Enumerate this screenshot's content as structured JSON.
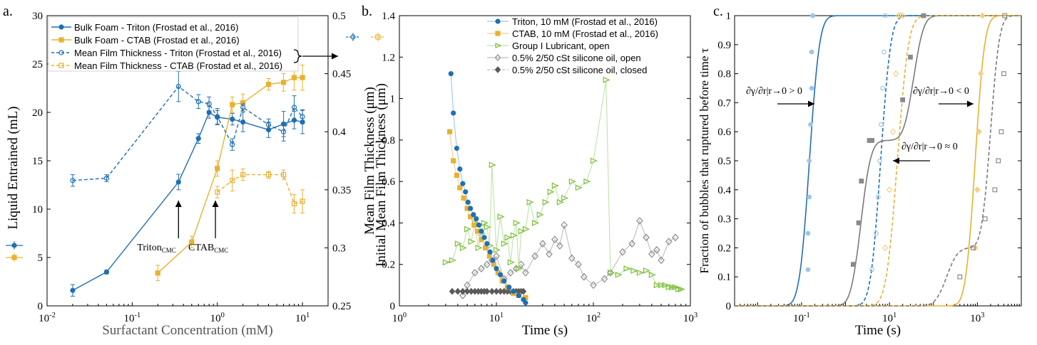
{
  "figure": {
    "panels": [
      "a.",
      "b.",
      "c."
    ]
  },
  "chart_data": [
    {
      "id": "a",
      "type": "line",
      "xlabel": "Surfactant Concentration (mM)",
      "ylabel": "Liquid Entrained (mL)",
      "ylabel_right": "Initial Mean Film Thickness (μm)",
      "xscale": "log",
      "xlim": [
        0.01,
        20
      ],
      "ylim": [
        0,
        30
      ],
      "ylim_right": [
        0.25,
        0.5
      ],
      "xticks": [
        0.01,
        0.1,
        1,
        10
      ],
      "xtick_labels": [
        "10^-2",
        "10^-1",
        "10^0",
        "10^1"
      ],
      "yticks": [
        0,
        5,
        10,
        15,
        20,
        25,
        30
      ],
      "yticks_right": [
        0.25,
        0.3,
        0.35,
        0.4,
        0.45,
        0.5
      ],
      "legend_position": "top-left",
      "colors": {
        "triton": "#1f6fb4",
        "ctab": "#e8b130"
      },
      "series": [
        {
          "name": "Bulk Foam - Triton (Frostad et al., 2016)",
          "axis": "left",
          "style": "solid",
          "marker": "filled-circle",
          "color": "#1f6fb4",
          "x": [
            0.02,
            0.05,
            0.35,
            0.6,
            0.8,
            1.0,
            1.5,
            2.0,
            4.0,
            6.0,
            8.0,
            10.0
          ],
          "y": [
            1.6,
            3.5,
            12.8,
            17.3,
            20.0,
            19.5,
            19.3,
            19.0,
            18.2,
            18.8,
            19.2,
            19.0
          ],
          "err": [
            0.6,
            0.2,
            0.8,
            0.5,
            0.6,
            0.7,
            0.6,
            1.0,
            0.8,
            1.3,
            0.9,
            1.2
          ]
        },
        {
          "name": "Bulk Foam - CTAB (Frostad et al., 2016)",
          "axis": "left",
          "style": "solid",
          "marker": "filled-square",
          "color": "#e8b130",
          "x": [
            0.2,
            0.5,
            1.0,
            1.5,
            2.0,
            4.0,
            6.0,
            8.0,
            10.0
          ],
          "y": [
            3.4,
            6.6,
            14.2,
            20.8,
            21.0,
            22.9,
            23.1,
            23.6,
            23.6
          ],
          "err": [
            0.8,
            0.6,
            0.8,
            0.8,
            0.9,
            0.6,
            0.9,
            1.3,
            1.3
          ]
        },
        {
          "name": "Mean Film Thickness - Triton (Frostad et al., 2016)",
          "axis": "right",
          "style": "dashed",
          "marker": "open-circle",
          "color": "#1f6fb4",
          "x": [
            0.02,
            0.05,
            0.35,
            0.6,
            0.8,
            1.0,
            1.5,
            2.0,
            4.0,
            6.0,
            8.0,
            10.0
          ],
          "y": [
            0.358,
            0.36,
            0.439,
            0.426,
            0.424,
            0.413,
            0.389,
            0.421,
            0.406,
            0.4,
            0.421,
            0.413
          ],
          "err": [
            0.005,
            0.003,
            0.013,
            0.006,
            0.006,
            0.007,
            0.005,
            0.003,
            0.005,
            0.008,
            0.01,
            0.006
          ]
        },
        {
          "name": "Mean Film Thickness - CTAB (Frostad et al., 2016)",
          "axis": "right",
          "style": "dashed",
          "marker": "open-square",
          "color": "#e8b130",
          "x": [
            1.0,
            1.5,
            2.0,
            4.0,
            6.0,
            8.0,
            10.0
          ],
          "y": [
            0.348,
            0.358,
            0.363,
            0.363,
            0.363,
            0.338,
            0.34
          ],
          "err": [
            0.005,
            0.009,
            0.005,
            0.003,
            0.004,
            0.008,
            0.01
          ]
        }
      ],
      "annotations": [
        {
          "text": "Triton",
          "sub": "CMC",
          "x": 0.35
        },
        {
          "text": "CTAB",
          "sub": "CMC",
          "x": 0.95
        }
      ]
    },
    {
      "id": "b",
      "type": "line",
      "xlabel": "Time (s)",
      "ylabel": "Mean Film Thickness (μm)",
      "xscale": "log",
      "xlim": [
        1,
        1000
      ],
      "ylim": [
        0,
        1.4
      ],
      "xticks": [
        1,
        10,
        100,
        1000
      ],
      "xtick_labels": [
        "10^0",
        "10^1",
        "10^2",
        "10^3"
      ],
      "yticks": [
        0,
        0.2,
        0.4,
        0.6,
        0.8,
        1,
        1.2,
        1.4
      ],
      "legend_position": "top-right",
      "series": [
        {
          "name": "Triton, 10 mM (Frostad et al., 2016)",
          "marker": "filled-circle",
          "color": "#1f6fb4",
          "x": [
            3.4,
            3.6,
            3.9,
            4.2,
            4.5,
            4.8,
            5.1,
            5.4,
            5.8,
            6.2,
            6.6,
            7.0,
            7.5,
            8.0,
            8.6,
            9.2,
            10,
            11,
            12,
            13.5,
            15,
            17,
            19,
            20
          ],
          "y": [
            1.12,
            0.93,
            0.76,
            0.66,
            0.59,
            0.55,
            0.5,
            0.47,
            0.44,
            0.42,
            0.39,
            0.36,
            0.33,
            0.3,
            0.26,
            0.22,
            0.18,
            0.15,
            0.12,
            0.09,
            0.07,
            0.05,
            0.03,
            0.015
          ]
        },
        {
          "name": "CTAB, 10 mM (Frostad et al., 2016)",
          "marker": "filled-square",
          "color": "#e8b130",
          "x": [
            3.3,
            3.6,
            3.9,
            4.2,
            4.6,
            5.0,
            5.4,
            5.9,
            6.4,
            7.0,
            7.7,
            8.5,
            9.4,
            10.4,
            11.5,
            13,
            15,
            17,
            20
          ],
          "y": [
            0.84,
            0.7,
            0.63,
            0.57,
            0.52,
            0.47,
            0.43,
            0.39,
            0.36,
            0.32,
            0.28,
            0.24,
            0.2,
            0.16,
            0.12,
            0.09,
            0.06,
            0.05,
            0.04
          ]
        },
        {
          "name": "Group I Lubricant, open",
          "marker": "open-triangle",
          "color": "#7dbf3a",
          "x": [
            3.0,
            3.5,
            4.0,
            4.5,
            5.0,
            5.5,
            6.0,
            6.5,
            7.0,
            7.5,
            8.0,
            8.5,
            9.0,
            10,
            11,
            12,
            13,
            14,
            15,
            16,
            17,
            18,
            20,
            22,
            25,
            28,
            32,
            36,
            40,
            45,
            50,
            60,
            70,
            85,
            100,
            135,
            150,
            180,
            220,
            260,
            300,
            350,
            400,
            450,
            500,
            550,
            600,
            650,
            700,
            750,
            800
          ],
          "y": [
            0.21,
            0.22,
            0.3,
            0.28,
            0.37,
            0.31,
            0.4,
            0.28,
            0.35,
            0.4,
            0.38,
            0.29,
            0.68,
            0.27,
            0.43,
            0.3,
            0.33,
            0.21,
            0.34,
            0.4,
            0.18,
            0.36,
            0.37,
            0.5,
            0.4,
            0.44,
            0.5,
            0.55,
            0.58,
            0.5,
            0.52,
            0.6,
            0.57,
            0.6,
            0.7,
            1.09,
            0.16,
            0.15,
            0.18,
            0.17,
            0.16,
            0.17,
            0.15,
            0.1,
            0.1,
            0.1,
            0.09,
            0.09,
            0.09,
            0.08,
            0.08
          ]
        },
        {
          "name": "0.5% 2/50 cSt silicone oil, open",
          "marker": "open-diamond",
          "color": "#8a8a8a",
          "x": [
            4.5,
            5.0,
            6.0,
            7.0,
            8.0,
            9.0,
            10,
            12,
            14,
            16,
            18,
            20,
            25,
            30,
            35,
            40,
            45,
            50,
            60,
            70,
            80,
            100,
            130,
            150,
            200,
            250,
            300,
            350,
            400,
            450,
            500,
            600,
            700
          ],
          "y": [
            0.05,
            0.1,
            0.16,
            0.18,
            0.2,
            0.22,
            0.24,
            0.13,
            0.16,
            0.18,
            0.2,
            0.16,
            0.24,
            0.3,
            0.25,
            0.32,
            0.29,
            0.39,
            0.23,
            0.2,
            0.14,
            0.1,
            0.13,
            0.16,
            0.26,
            0.3,
            0.41,
            0.33,
            0.25,
            0.27,
            0.22,
            0.31,
            0.33
          ]
        },
        {
          "name": "0.5% 2/50 cSt silicone oil, closed",
          "marker": "filled-diamond",
          "color": "#5a5a5a",
          "x": [
            3.5,
            4.0,
            4.5,
            5.0,
            5.5,
            6.0,
            6.5,
            7.0,
            7.5,
            8.0,
            9.0,
            10,
            11,
            12,
            13,
            14,
            15,
            16,
            17,
            18,
            19
          ],
          "y": [
            0.07,
            0.07,
            0.07,
            0.07,
            0.07,
            0.07,
            0.07,
            0.07,
            0.07,
            0.07,
            0.07,
            0.07,
            0.07,
            0.07,
            0.07,
            0.07,
            0.07,
            0.07,
            0.07,
            0.07,
            0.07
          ]
        }
      ]
    },
    {
      "id": "c",
      "type": "line",
      "xlabel": "Time (s)",
      "ylabel": "Fraction of bubbles that ruptured before time τ",
      "xscale": "log",
      "xlim": [
        0.003,
        10000
      ],
      "ylim": [
        0,
        1
      ],
      "xticks": [
        0.1,
        10,
        1000
      ],
      "xtick_labels": [
        "10^-1",
        "10^1",
        "10^3"
      ],
      "yticks": [
        0,
        0.1,
        0.2,
        0.3,
        0.4,
        0.5,
        0.6,
        0.7,
        0.8,
        0.9,
        1
      ],
      "curves": [
        {
          "name": "blue-solid",
          "color": "#1f6fb4",
          "style": "solid",
          "mu_log10": -0.82,
          "sigma": 0.18
        },
        {
          "name": "blue-dashed",
          "color": "#1f6fb4",
          "style": "dashed",
          "mu_log10": 0.8,
          "sigma": 0.18
        },
        {
          "name": "gray-solid",
          "color": "#7a7a7a",
          "style": "solid",
          "mix": [
            {
              "w": 0.57,
              "mu": 0.35,
              "s": 0.18
            },
            {
              "w": 0.43,
              "mu": 1.55,
              "s": 0.18
            }
          ]
        },
        {
          "name": "gold-dashed",
          "color": "#e8b130",
          "style": "dashed",
          "mu_log10": 1.18,
          "sigma": 0.2
        },
        {
          "name": "gold-solid",
          "color": "#e8b130",
          "style": "solid",
          "mu_log10": 2.95,
          "sigma": 0.17
        },
        {
          "name": "gray-dashed",
          "color": "#7a7a7a",
          "style": "dashed",
          "mix": [
            {
              "w": 0.2,
              "mu": 2.3,
              "s": 0.2
            },
            {
              "w": 0.8,
              "mu": 3.3,
              "s": 0.16
            }
          ]
        }
      ],
      "points": [
        {
          "color": "#9ec5e8",
          "marker": "filled-circle",
          "x": [
            0.14,
            0.14,
            0.15,
            0.15,
            0.16,
            0.17,
            0.17,
            0.18,
            0.18
          ],
          "y": [
            0.125,
            0.25,
            0.375,
            0.5,
            0.625,
            0.75,
            0.875,
            1.0,
            1.0
          ]
        },
        {
          "color": "#9ec5e8",
          "marker": "open-circle",
          "x": [
            4.0,
            5.0,
            5.5,
            6.0,
            6.5,
            7.0,
            7.5,
            8.0
          ],
          "y": [
            0.125,
            0.25,
            0.375,
            0.5,
            0.625,
            0.75,
            0.875,
            1.0
          ]
        },
        {
          "color": "#8a8a8a",
          "marker": "filled-square",
          "x": [
            1.5,
            2.0,
            2.3,
            3.5,
            4.0,
            20,
            30,
            60
          ],
          "y": [
            0.143,
            0.286,
            0.43,
            0.57,
            0.57,
            0.71,
            0.857,
            1.0
          ]
        },
        {
          "color": "#f3cf86",
          "marker": "open-diamond",
          "x": [
            8,
            10,
            12,
            14,
            16,
            18,
            20
          ],
          "y": [
            0.2,
            0.4,
            0.6,
            0.8,
            1.0,
            1.0,
            1.0
          ]
        },
        {
          "color": "#f3cf86",
          "marker": "filled-diamond",
          "x": [
            900,
            1000,
            1100,
            1200,
            1300
          ],
          "y": [
            0.2,
            0.4,
            0.6,
            0.8,
            1.0
          ]
        },
        {
          "color": "#8a8a8a",
          "marker": "open-square",
          "x": [
            400,
            800,
            1500,
            2500,
            3000,
            3500,
            4000,
            4200
          ],
          "y": [
            0.1,
            0.2,
            0.3,
            0.4,
            0.5,
            0.6,
            0.8,
            1.0
          ]
        }
      ],
      "annotations": [
        {
          "text": "∂γ/∂r|r→0 > 0"
        },
        {
          "text": "∂γ/∂r|r→0 < 0"
        },
        {
          "text": "∂γ/∂r|r→0 ≈ 0"
        }
      ]
    }
  ]
}
